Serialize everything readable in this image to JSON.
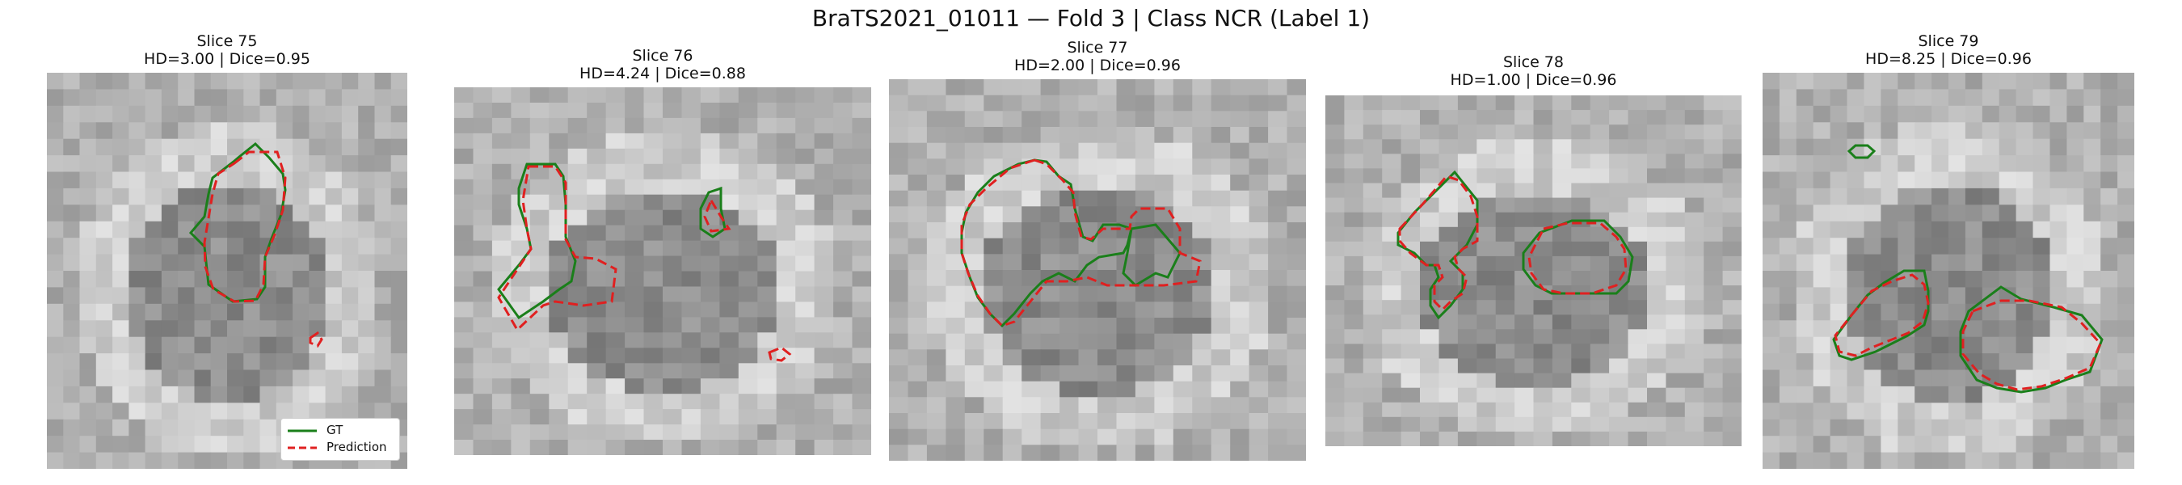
{
  "figure": {
    "title": "BraTS2021_01011 — Fold 3 | Class NCR (Label 1)"
  },
  "panels": [
    {
      "slice": "Slice 75",
      "metrics": "HD=3.00 | Dice=0.95"
    },
    {
      "slice": "Slice 76",
      "metrics": "HD=4.24 | Dice=0.88"
    },
    {
      "slice": "Slice 77",
      "metrics": "HD=2.00 | Dice=0.96"
    },
    {
      "slice": "Slice 78",
      "metrics": "HD=1.00 | Dice=0.96"
    },
    {
      "slice": "Slice 79",
      "metrics": "HD=8.25 | Dice=0.96"
    }
  ],
  "legend": {
    "gt_label": "GT",
    "pred_label": "Prediction"
  },
  "colors": {
    "gt": "#1a7f1a",
    "prediction": "#e02020"
  }
}
